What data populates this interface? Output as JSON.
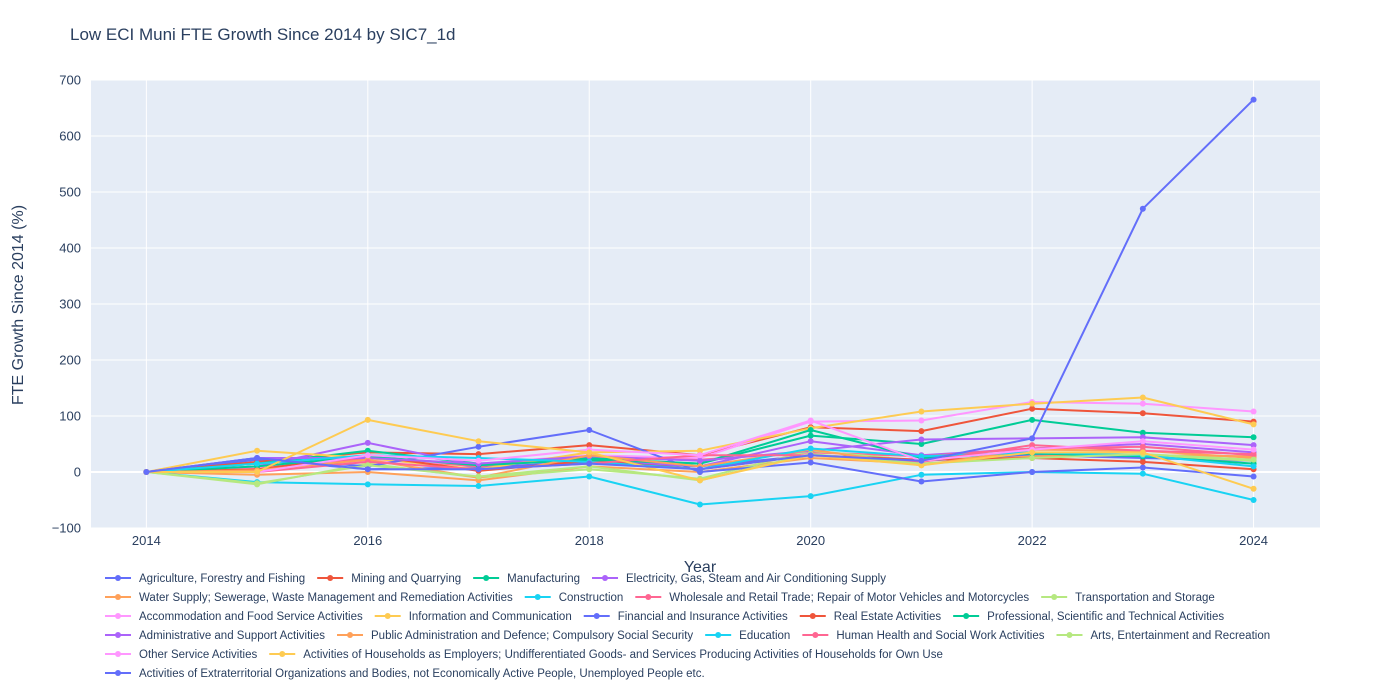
{
  "chart_data": {
    "type": "line",
    "title": "Low ECI Muni FTE Growth Since 2014 by SIC7_1d",
    "xlabel": "Year",
    "ylabel": "FTE Growth Since 2014 (%)",
    "xlim": [
      2013.5,
      2024.6
    ],
    "ylim": [
      -100,
      700
    ],
    "x_ticks": [
      2014,
      2016,
      2018,
      2020,
      2022,
      2024
    ],
    "y_ticks": [
      -100,
      0,
      100,
      200,
      300,
      400,
      500,
      600,
      700
    ],
    "y_tick_labels": [
      "−100",
      "0",
      "100",
      "200",
      "300",
      "400",
      "500",
      "600",
      "700"
    ],
    "grid": true,
    "legend_placement": "bottom",
    "x": [
      2014,
      2015,
      2016,
      2017,
      2018,
      2019,
      2020,
      2021,
      2022,
      2023,
      2024
    ],
    "series": [
      {
        "name": "Agriculture, Forestry and Fishing",
        "color": "#636efa",
        "values": [
          0,
          22,
          5,
          8,
          18,
          10,
          30,
          20,
          30,
          25,
          20
        ]
      },
      {
        "name": "Mining and Quarrying",
        "color": "#EF553B",
        "values": [
          0,
          18,
          35,
          32,
          48,
          30,
          80,
          73,
          113,
          105,
          90
        ]
      },
      {
        "name": "Manufacturing",
        "color": "#00cc96",
        "values": [
          0,
          15,
          38,
          15,
          25,
          15,
          65,
          50,
          93,
          70,
          62
        ]
      },
      {
        "name": "Electricity, Gas, Steam and Air Conditioning Supply",
        "color": "#ab63fa",
        "values": [
          0,
          10,
          52,
          12,
          22,
          10,
          55,
          30,
          42,
          50,
          35
        ]
      },
      {
        "name": "Water Supply; Sewerage, Waste Management and Remediation Activities",
        "color": "#FFA15A",
        "values": [
          0,
          -5,
          0,
          -15,
          10,
          0,
          25,
          15,
          28,
          30,
          28
        ]
      },
      {
        "name": "Construction",
        "color": "#19d3f3",
        "values": [
          0,
          -18,
          -22,
          -25,
          -8,
          -58,
          -43,
          -5,
          0,
          -3,
          -50
        ]
      },
      {
        "name": "Wholesale and Retail Trade; Repair of Motor Vehicles and Motorcycles",
        "color": "#FF6692",
        "values": [
          0,
          5,
          25,
          10,
          28,
          22,
          35,
          28,
          42,
          45,
          30
        ]
      },
      {
        "name": "Transportation and Storage",
        "color": "#B6E880",
        "values": [
          0,
          -22,
          15,
          -10,
          5,
          -12,
          38,
          20,
          35,
          30,
          20
        ]
      },
      {
        "name": "Accommodation and Food Service Activities",
        "color": "#FF97FF",
        "values": [
          0,
          8,
          20,
          15,
          30,
          25,
          90,
          92,
          125,
          122,
          108
        ]
      },
      {
        "name": "Information and Communication",
        "color": "#FECB52",
        "values": [
          0,
          38,
          25,
          5,
          35,
          38,
          78,
          108,
          122,
          133,
          85
        ]
      },
      {
        "name": "Financial and Insurance Activities",
        "color": "#636efa",
        "values": [
          0,
          25,
          10,
          45,
          75,
          0,
          17,
          -17,
          0,
          8,
          -8
        ]
      },
      {
        "name": "Real Estate Activities",
        "color": "#EF553B",
        "values": [
          0,
          5,
          30,
          2,
          20,
          5,
          30,
          22,
          25,
          18,
          5
        ]
      },
      {
        "name": "Professional, Scientific and Technical Activities",
        "color": "#00cc96",
        "values": [
          0,
          10,
          28,
          12,
          22,
          15,
          75,
          25,
          33,
          28,
          15
        ]
      },
      {
        "name": "Administrative and Support Activities",
        "color": "#ab63fa",
        "values": [
          0,
          25,
          25,
          15,
          28,
          20,
          38,
          58,
          60,
          62,
          48
        ]
      },
      {
        "name": "Public Administration and Defence; Compulsory Social Security",
        "color": "#FFA15A",
        "values": [
          0,
          3,
          22,
          -10,
          30,
          10,
          40,
          12,
          40,
          38,
          25
        ]
      },
      {
        "name": "Education",
        "color": "#19d3f3",
        "values": [
          0,
          15,
          30,
          25,
          18,
          5,
          42,
          28,
          35,
          30,
          10
        ]
      },
      {
        "name": "Human Health and Social Work Activities",
        "color": "#FF6692",
        "values": [
          0,
          0,
          18,
          5,
          15,
          30,
          30,
          18,
          48,
          38,
          32
        ]
      },
      {
        "name": "Arts, Entertainment and Recreation",
        "color": "#B6E880",
        "values": [
          0,
          -20,
          12,
          -8,
          10,
          -15,
          32,
          15,
          25,
          32,
          22
        ]
      },
      {
        "name": "Other Service Activities",
        "color": "#FF97FF",
        "values": [
          0,
          0,
          30,
          20,
          40,
          30,
          92,
          20,
          40,
          55,
          40
        ]
      },
      {
        "name": "Activities of Households as Employers; Undifferentiated Goods- and Services Producing Activities of Households for Own Use",
        "color": "#FECB52",
        "values": [
          0,
          0,
          93,
          55,
          35,
          -15,
          30,
          12,
          35,
          35,
          -30
        ]
      },
      {
        "name": "Activities of Extraterritorial Organizations and Bodies, not Economically Active People, Unemployed People etc.",
        "color": "#636efa",
        "values": [
          0,
          25,
          5,
          5,
          15,
          5,
          30,
          20,
          60,
          470,
          665
        ]
      }
    ]
  }
}
